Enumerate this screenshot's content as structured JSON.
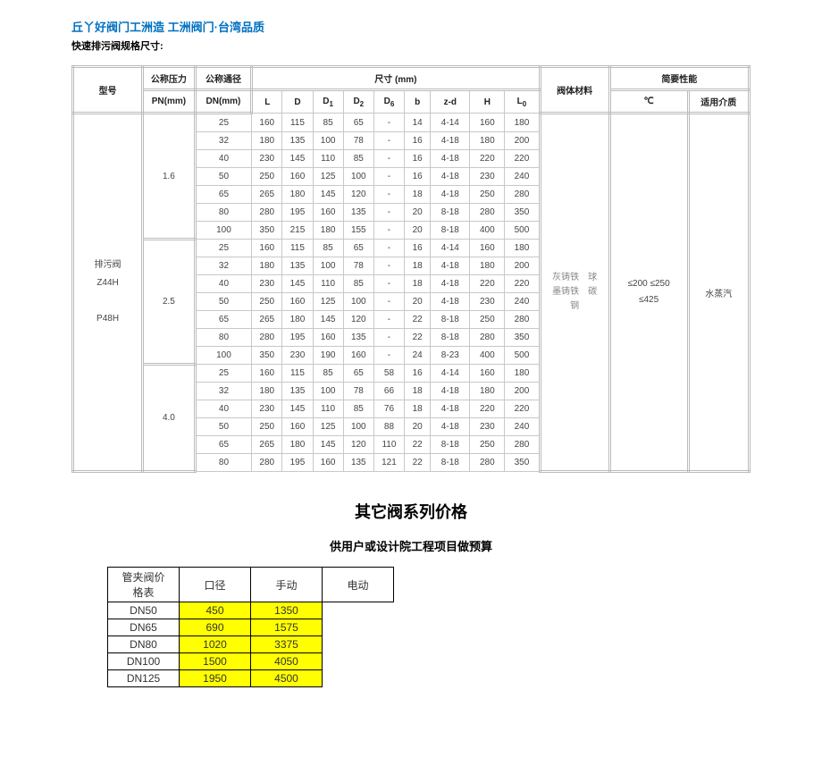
{
  "header": {
    "title_link": "丘丫好阀门工洲造 工洲阀门·台湾品质",
    "subtitle": "快速排污阀规格尺寸:"
  },
  "spec_table": {
    "col_groups": {
      "model": "型号",
      "pressure": "公称压力",
      "pressure_sub": "PN(mm)",
      "diameter": "公称通径",
      "diameter_sub": "DN(mm)",
      "dimensions": "尺寸 (mm)",
      "material": "阀体材料",
      "performance": "简要性能",
      "temp": "℃",
      "medium": "适用介质"
    },
    "dim_cols": [
      "L",
      "D",
      "D₁",
      "D₂",
      "D₆",
      "b",
      "z-d",
      "H",
      "L₀"
    ],
    "model_cell": "排污阀\nZ44H\n\nP48H",
    "material_cell": "灰铸铁　球\n墨铸铁　碳\n钢",
    "temp_cell": "≤200 ≤250\n≤425",
    "medium_cell": "水蒸汽",
    "groups": [
      {
        "pn": "1.6",
        "rows": [
          {
            "dn": "25",
            "L": "160",
            "D": "115",
            "D1": "85",
            "D2": "65",
            "D6": "-",
            "b": "14",
            "zd": "4-14",
            "H": "160",
            "L0": "180"
          },
          {
            "dn": "32",
            "L": "180",
            "D": "135",
            "D1": "100",
            "D2": "78",
            "D6": "-",
            "b": "16",
            "zd": "4-18",
            "H": "180",
            "L0": "200"
          },
          {
            "dn": "40",
            "L": "230",
            "D": "145",
            "D1": "110",
            "D2": "85",
            "D6": "-",
            "b": "16",
            "zd": "4-18",
            "H": "220",
            "L0": "220"
          },
          {
            "dn": "50",
            "L": "250",
            "D": "160",
            "D1": "125",
            "D2": "100",
            "D6": "-",
            "b": "16",
            "zd": "4-18",
            "H": "230",
            "L0": "240"
          },
          {
            "dn": "65",
            "L": "265",
            "D": "180",
            "D1": "145",
            "D2": "120",
            "D6": "-",
            "b": "18",
            "zd": "4-18",
            "H": "250",
            "L0": "280"
          },
          {
            "dn": "80",
            "L": "280",
            "D": "195",
            "D1": "160",
            "D2": "135",
            "D6": "-",
            "b": "20",
            "zd": "8-18",
            "H": "280",
            "L0": "350"
          },
          {
            "dn": "100",
            "L": "350",
            "D": "215",
            "D1": "180",
            "D2": "155",
            "D6": "-",
            "b": "20",
            "zd": "8-18",
            "H": "400",
            "L0": "500"
          }
        ]
      },
      {
        "pn": "2.5",
        "rows": [
          {
            "dn": "25",
            "L": "160",
            "D": "115",
            "D1": "85",
            "D2": "65",
            "D6": "-",
            "b": "16",
            "zd": "4-14",
            "H": "160",
            "L0": "180"
          },
          {
            "dn": "32",
            "L": "180",
            "D": "135",
            "D1": "100",
            "D2": "78",
            "D6": "-",
            "b": "18",
            "zd": "4-18",
            "H": "180",
            "L0": "200"
          },
          {
            "dn": "40",
            "L": "230",
            "D": "145",
            "D1": "110",
            "D2": "85",
            "D6": "-",
            "b": "18",
            "zd": "4-18",
            "H": "220",
            "L0": "220"
          },
          {
            "dn": "50",
            "L": "250",
            "D": "160",
            "D1": "125",
            "D2": "100",
            "D6": "-",
            "b": "20",
            "zd": "4-18",
            "H": "230",
            "L0": "240"
          },
          {
            "dn": "65",
            "L": "265",
            "D": "180",
            "D1": "145",
            "D2": "120",
            "D6": "-",
            "b": "22",
            "zd": "8-18",
            "H": "250",
            "L0": "280"
          },
          {
            "dn": "80",
            "L": "280",
            "D": "195",
            "D1": "160",
            "D2": "135",
            "D6": "-",
            "b": "22",
            "zd": "8-18",
            "H": "280",
            "L0": "350"
          },
          {
            "dn": "100",
            "L": "350",
            "D": "230",
            "D1": "190",
            "D2": "160",
            "D6": "-",
            "b": "24",
            "zd": "8-23",
            "H": "400",
            "L0": "500"
          }
        ]
      },
      {
        "pn": "4.0",
        "rows": [
          {
            "dn": "25",
            "L": "160",
            "D": "115",
            "D1": "85",
            "D2": "65",
            "D6": "58",
            "b": "16",
            "zd": "4-14",
            "H": "160",
            "L0": "180"
          },
          {
            "dn": "32",
            "L": "180",
            "D": "135",
            "D1": "100",
            "D2": "78",
            "D6": "66",
            "b": "18",
            "zd": "4-18",
            "H": "180",
            "L0": "200"
          },
          {
            "dn": "40",
            "L": "230",
            "D": "145",
            "D1": "110",
            "D2": "85",
            "D6": "76",
            "b": "18",
            "zd": "4-18",
            "H": "220",
            "L0": "220"
          },
          {
            "dn": "50",
            "L": "250",
            "D": "160",
            "D1": "125",
            "D2": "100",
            "D6": "88",
            "b": "20",
            "zd": "4-18",
            "H": "230",
            "L0": "240"
          },
          {
            "dn": "65",
            "L": "265",
            "D": "180",
            "D1": "145",
            "D2": "120",
            "D6": "110",
            "b": "22",
            "zd": "8-18",
            "H": "250",
            "L0": "280"
          },
          {
            "dn": "80",
            "L": "280",
            "D": "195",
            "D1": "160",
            "D2": "135",
            "D6": "121",
            "b": "22",
            "zd": "8-18",
            "H": "280",
            "L0": "350"
          }
        ]
      }
    ]
  },
  "section2": {
    "title": "其它阀系列价格",
    "subtitle": "供用户或设计院工程项目做预算"
  },
  "price_table": {
    "row_header": "管夹阀价格表",
    "cols": [
      "口径",
      "手动",
      "电动"
    ],
    "rows": [
      {
        "dn": "DN50",
        "manual": "450",
        "electric": "1350"
      },
      {
        "dn": "DN65",
        "manual": "690",
        "electric": "1575"
      },
      {
        "dn": "DN80",
        "manual": "1020",
        "electric": "3375"
      },
      {
        "dn": "DN100",
        "manual": "1500",
        "electric": "4050"
      },
      {
        "dn": "DN125",
        "manual": "1950",
        "electric": "4500"
      }
    ]
  }
}
